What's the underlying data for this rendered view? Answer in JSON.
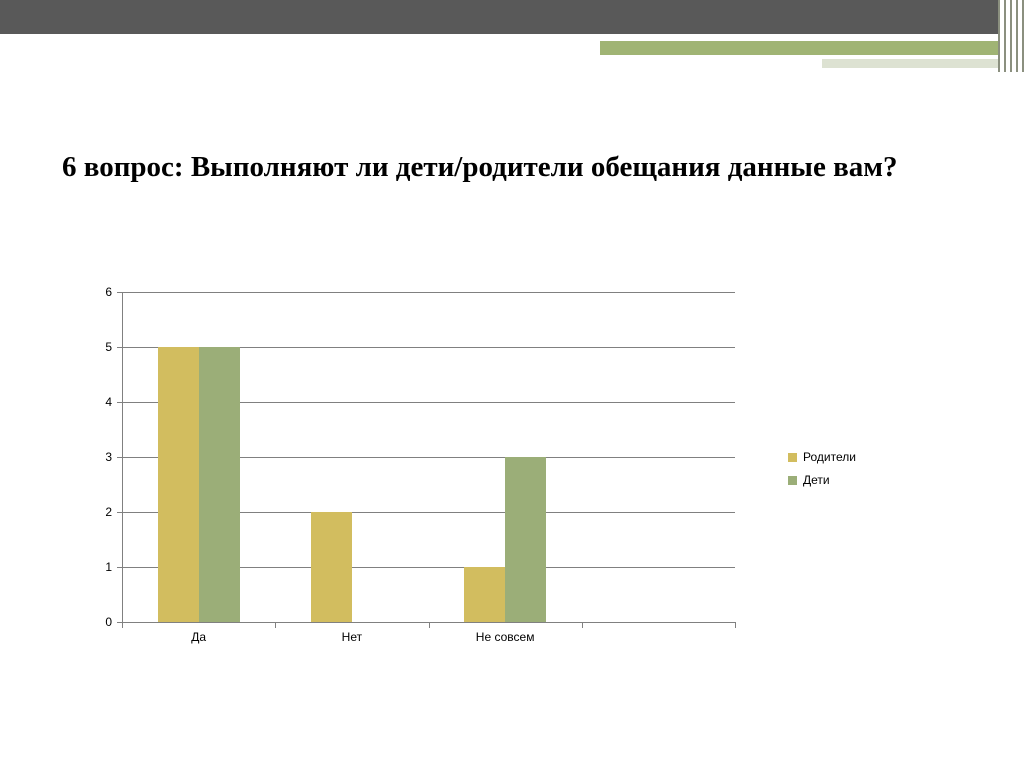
{
  "slide": {
    "title": "6 вопрос: Выполняют ли дети/родители обещания данные вам?"
  },
  "chart_data": {
    "type": "bar",
    "title": "",
    "xlabel": "",
    "ylabel": "",
    "categories": [
      "Да",
      "Нет",
      "Не совсем"
    ],
    "series": [
      {
        "name": "Родители",
        "color": "#D2BD5F",
        "values": [
          5,
          2,
          1
        ]
      },
      {
        "name": "Дети",
        "color": "#9BAE78",
        "values": [
          5,
          0,
          3
        ]
      }
    ],
    "ylim": [
      0,
      6
    ],
    "yticks": [
      0,
      1,
      2,
      3,
      4,
      5,
      6
    ],
    "grid": true,
    "legend_position": "right"
  },
  "theme": {
    "header_dark": "#595959",
    "header_green": "#A0B474",
    "header_light": "#DDE2D2",
    "gridline": "#808080",
    "axis": "#808080",
    "text": "#000000"
  }
}
